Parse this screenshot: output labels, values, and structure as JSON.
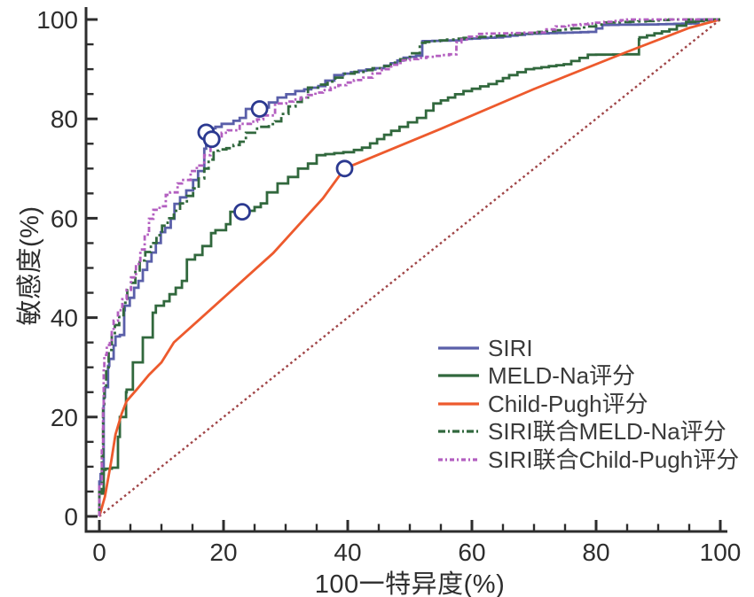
{
  "chart_data": {
    "type": "line",
    "subtype": "roc-curves",
    "title": "",
    "xlabel": "100一特异度(%)",
    "ylabel": "敏感度(%)",
    "xlim": [
      0,
      100
    ],
    "ylim": [
      0,
      100
    ],
    "x_ticks": [
      0,
      20,
      40,
      60,
      80,
      100
    ],
    "y_ticks": [
      0,
      20,
      40,
      60,
      80,
      100
    ],
    "minor_tick_step": 5,
    "grid": false,
    "axis_color": "#2d2d2d",
    "tick_label_color": "#2d2d2d",
    "legend_position": "right-center",
    "series": [
      {
        "name": "SIRI",
        "color": "#5a5fa9",
        "dash": "",
        "legend_dash": "",
        "interp": "step",
        "points": [
          [
            0,
            0
          ],
          [
            0.2,
            7
          ],
          [
            0.7,
            8.5
          ],
          [
            0.9,
            24
          ],
          [
            1.4,
            26
          ],
          [
            1.6,
            30.3
          ],
          [
            2.3,
            31.7
          ],
          [
            2.6,
            34.4
          ],
          [
            3.3,
            36.2
          ],
          [
            4.0,
            36.5
          ],
          [
            4.1,
            41.5
          ],
          [
            4.9,
            42.4
          ],
          [
            5.6,
            44
          ],
          [
            6.3,
            46
          ],
          [
            7,
            47.4
          ],
          [
            7.7,
            49.6
          ],
          [
            8.4,
            51.3
          ],
          [
            9.1,
            53.1
          ],
          [
            9.9,
            55
          ],
          [
            10.6,
            57.2
          ],
          [
            11.5,
            58.1
          ],
          [
            12.1,
            59.9
          ],
          [
            13,
            62.9
          ],
          [
            14,
            64.2
          ],
          [
            15.1,
            65.6
          ],
          [
            15.9,
            67.7
          ],
          [
            16.9,
            69.5
          ],
          [
            17.2,
            74
          ],
          [
            17.3,
            77.2
          ],
          [
            18.7,
            78.1
          ],
          [
            19.7,
            78.4
          ],
          [
            21.6,
            79
          ],
          [
            23.6,
            80.2
          ],
          [
            25.4,
            82
          ],
          [
            27.3,
            82.3
          ],
          [
            30.1,
            84.3
          ],
          [
            33,
            85.6
          ],
          [
            36.4,
            86.6
          ],
          [
            39.3,
            88.8
          ],
          [
            43,
            89.7
          ],
          [
            45.9,
            90.2
          ],
          [
            48,
            91.2
          ],
          [
            50,
            92.3
          ],
          [
            52,
            92.7
          ],
          [
            52.2,
            95.6
          ],
          [
            58,
            95.8
          ],
          [
            60,
            96.1
          ],
          [
            65,
            96.4
          ],
          [
            69.7,
            97.1
          ],
          [
            75,
            97.3
          ],
          [
            80,
            97.5
          ],
          [
            82,
            98.9
          ],
          [
            90,
            99
          ],
          [
            96.5,
            99.2
          ],
          [
            98,
            100
          ],
          [
            100,
            100
          ]
        ]
      },
      {
        "name": "MELD-Na评分",
        "color": "#31683d",
        "dash": "",
        "legend_dash": "",
        "interp": "step",
        "points": [
          [
            0,
            0
          ],
          [
            0.7,
            4.6
          ],
          [
            1,
            9.4
          ],
          [
            3,
            9.8
          ],
          [
            3.3,
            16
          ],
          [
            4.3,
            20
          ],
          [
            4.4,
            25
          ],
          [
            5.4,
            25.5
          ],
          [
            7,
            31
          ],
          [
            8.6,
            36
          ],
          [
            9.1,
            41
          ],
          [
            10.4,
            42.4
          ],
          [
            11.3,
            43.3
          ],
          [
            12.3,
            44.7
          ],
          [
            13.3,
            46
          ],
          [
            14.1,
            47.4
          ],
          [
            15.4,
            51.7
          ],
          [
            16.6,
            52.6
          ],
          [
            18,
            54.4
          ],
          [
            18.7,
            57
          ],
          [
            20.4,
            57.6
          ],
          [
            21.1,
            58.8
          ],
          [
            23,
            61.3
          ],
          [
            25,
            61.5
          ],
          [
            27,
            63
          ],
          [
            28.7,
            65.2
          ],
          [
            30.4,
            67
          ],
          [
            32,
            68.3
          ],
          [
            33.6,
            70
          ],
          [
            35,
            71
          ],
          [
            36.4,
            72.7
          ],
          [
            39.3,
            73.1
          ],
          [
            41,
            73.3
          ],
          [
            43.6,
            74.2
          ],
          [
            47,
            76.8
          ],
          [
            49.7,
            78.4
          ],
          [
            52.6,
            80.2
          ],
          [
            55,
            83.1
          ],
          [
            57.3,
            84.3
          ],
          [
            60,
            85.6
          ],
          [
            64,
            87
          ],
          [
            66,
            88.2
          ],
          [
            70,
            90
          ],
          [
            76,
            91
          ],
          [
            80,
            92.9
          ],
          [
            86.9,
            93
          ],
          [
            87,
            96
          ],
          [
            93,
            98
          ],
          [
            96,
            99.5
          ],
          [
            100,
            100
          ]
        ]
      },
      {
        "name": "Child-Pugh评分",
        "color": "#ed5a2d",
        "dash": "",
        "legend_dash": "",
        "interp": "linear",
        "points": [
          [
            0,
            0
          ],
          [
            0.9,
            4
          ],
          [
            1.9,
            11
          ],
          [
            2.6,
            16.5
          ],
          [
            3.6,
            20.7
          ],
          [
            4.4,
            23.2
          ],
          [
            6,
            25.5
          ],
          [
            8,
            28.5
          ],
          [
            10,
            31
          ],
          [
            12,
            35
          ],
          [
            16,
            39.5
          ],
          [
            20,
            44
          ],
          [
            24,
            48.5
          ],
          [
            28,
            53
          ],
          [
            32,
            58.5
          ],
          [
            36,
            64
          ],
          [
            39.5,
            70
          ],
          [
            55,
            78
          ],
          [
            70,
            86
          ],
          [
            85,
            93.5
          ],
          [
            95,
            98.3
          ],
          [
            100,
            100
          ]
        ]
      },
      {
        "name": "SIRI联合MELD-Na评分",
        "color": "#31683d",
        "dash": "12 4 3 4",
        "legend_dash": "8 3 2 3",
        "interp": "step",
        "points": [
          [
            0,
            0
          ],
          [
            0.4,
            5
          ],
          [
            0.6,
            12
          ],
          [
            0.8,
            22
          ],
          [
            1.1,
            26
          ],
          [
            1.5,
            30
          ],
          [
            2,
            33.5
          ],
          [
            2.5,
            36.5
          ],
          [
            3.2,
            38.5
          ],
          [
            3.9,
            40.5
          ],
          [
            4.5,
            43
          ],
          [
            5.1,
            45.5
          ],
          [
            5.8,
            47
          ],
          [
            6.5,
            49.5
          ],
          [
            7.4,
            51.5
          ],
          [
            8.3,
            53.2
          ],
          [
            9.2,
            55
          ],
          [
            10.1,
            56.6
          ],
          [
            11,
            58.5
          ],
          [
            12,
            60
          ],
          [
            13,
            61.5
          ],
          [
            14.1,
            63
          ],
          [
            15.1,
            64.5
          ],
          [
            16,
            66
          ],
          [
            16.9,
            68
          ],
          [
            17.6,
            70
          ],
          [
            18.4,
            71.8
          ],
          [
            19.3,
            73.6
          ],
          [
            21.6,
            74.1
          ],
          [
            23.6,
            75.4
          ],
          [
            25.4,
            77.2
          ],
          [
            27.3,
            78.4
          ],
          [
            29.3,
            79.5
          ],
          [
            31.6,
            82.5
          ],
          [
            33.6,
            84.3
          ],
          [
            35.5,
            86.3
          ],
          [
            38,
            87.5
          ],
          [
            41.1,
            89.1
          ],
          [
            44,
            89.8
          ],
          [
            46.9,
            90.6
          ],
          [
            50,
            92
          ],
          [
            51.6,
            93.2
          ],
          [
            52.5,
            95.3
          ],
          [
            56,
            95.8
          ],
          [
            60,
            96.3
          ],
          [
            64,
            96.6
          ],
          [
            68,
            97
          ],
          [
            72,
            97.5
          ],
          [
            76,
            98
          ],
          [
            80,
            98.6
          ],
          [
            83,
            99.4
          ],
          [
            88,
            99.6
          ],
          [
            93,
            100
          ],
          [
            100,
            100
          ]
        ]
      },
      {
        "name": "SIRI联合Child-Pugh评分",
        "color": "#b35fc0",
        "dash": "6 3 2.5 3",
        "legend_dash": "5 3 2 3",
        "interp": "step",
        "points": [
          [
            0,
            0
          ],
          [
            0.4,
            6
          ],
          [
            0.6,
            14
          ],
          [
            0.7,
            22
          ],
          [
            0.8,
            30
          ],
          [
            1.2,
            32.5
          ],
          [
            1.7,
            34.5
          ],
          [
            2,
            35.5
          ],
          [
            2.3,
            37.4
          ],
          [
            3,
            39.4
          ],
          [
            3.7,
            41.5
          ],
          [
            4.4,
            43.7
          ],
          [
            5.1,
            45.6
          ],
          [
            5.9,
            48.1
          ],
          [
            6.6,
            50.8
          ],
          [
            7.3,
            53.7
          ],
          [
            8,
            56.7
          ],
          [
            8.7,
            59.9
          ],
          [
            9.7,
            61.7
          ],
          [
            10.7,
            62.4
          ],
          [
            11.4,
            64.7
          ],
          [
            12.6,
            65.2
          ],
          [
            13.3,
            67
          ],
          [
            14.7,
            67.7
          ],
          [
            15.7,
            69.5
          ],
          [
            16.9,
            70.6
          ],
          [
            17.9,
            72.7
          ],
          [
            18.5,
            74.9
          ],
          [
            19.7,
            75.9
          ],
          [
            20.7,
            77.2
          ],
          [
            22.6,
            77.7
          ],
          [
            24.4,
            79
          ],
          [
            26.4,
            79.9
          ],
          [
            28.3,
            80.7
          ],
          [
            30.1,
            83.1
          ],
          [
            33.6,
            84.3
          ],
          [
            36,
            85.3
          ],
          [
            38.5,
            86.3
          ],
          [
            41,
            87.3
          ],
          [
            44,
            88.3
          ],
          [
            47,
            90
          ],
          [
            50,
            91.8
          ],
          [
            54,
            92.5
          ],
          [
            57.5,
            93
          ],
          [
            58.3,
            95.4
          ],
          [
            62,
            97.1
          ],
          [
            72,
            97.4
          ],
          [
            75,
            98.6
          ],
          [
            80,
            99.2
          ],
          [
            84,
            99.7
          ],
          [
            86,
            100
          ],
          [
            100,
            100
          ]
        ]
      }
    ],
    "reference_line": {
      "name": "chance-diagonal",
      "color": "#a04547",
      "dash": "2.6 3.4",
      "points": [
        [
          0,
          0
        ],
        [
          100,
          100
        ]
      ]
    },
    "cutoff_markers": {
      "shape": "open-circle",
      "color": "#2b3990",
      "points": [
        [
          17.2,
          77.3
        ],
        [
          18.1,
          75.9
        ],
        [
          25.8,
          82
        ],
        [
          23,
          61.3
        ],
        [
          39.5,
          70
        ]
      ]
    }
  }
}
